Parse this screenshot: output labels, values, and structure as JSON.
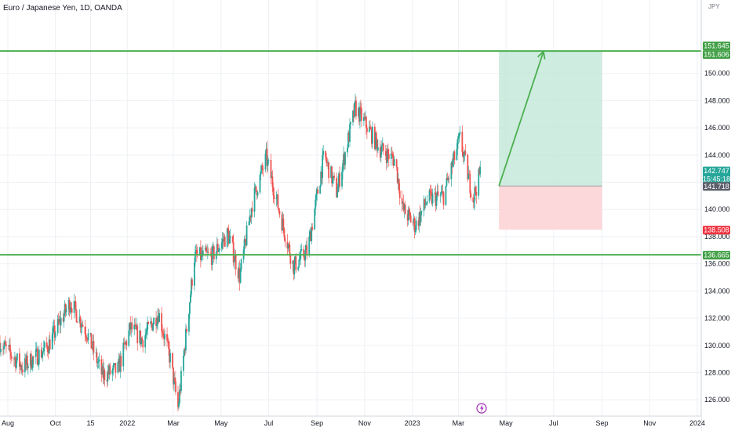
{
  "chart_title": "Euro / Japanese Yen, 1D, OANDA",
  "colors": {
    "up": "#26a69a",
    "down": "#ef5350",
    "grid": "#eef0f4",
    "axis_text": "#131722",
    "level_line": "#4caf50",
    "target_zone": "#bfe5d6",
    "stop_zone": "#fbd1d5",
    "price_tag_green": "#26a69a",
    "price_tag_dark": "#5d606b",
    "price_tag_red": "#ef3340",
    "level_tag": "#43a047",
    "arrow": "#4caf50"
  },
  "chart_data": {
    "type": "candlestick",
    "title": "Euro / Japanese Yen, 1D, OANDA",
    "y_unit": "JPY",
    "ylim": [
      124.8,
      155.4
    ],
    "y_ticks": [
      "126.000",
      "128.000",
      "130.000",
      "132.000",
      "134.000",
      "136.000",
      "138.000",
      "140.000",
      "142.000",
      "144.000",
      "146.000",
      "148.000",
      "150.000"
    ],
    "x_ticks": [
      "Aug",
      "Oct",
      "15",
      "2022",
      "Mar",
      "May",
      "Jul",
      "Sep",
      "Nov",
      "2023",
      "Mar",
      "May",
      "Jul",
      "Sep",
      "Nov",
      "2024"
    ],
    "x_tick_dates": [
      "2021-08-01",
      "2021-10-01",
      "2021-11-15",
      "2022-01-01",
      "2022-03-01",
      "2022-05-01",
      "2022-07-01",
      "2022-09-01",
      "2022-11-01",
      "2023-01-01",
      "2023-03-01",
      "2023-05-01",
      "2023-07-01",
      "2023-09-01",
      "2023-11-01",
      "2024-01-01"
    ],
    "xlim": [
      "2021-07-22",
      "2024-01-06"
    ],
    "last_candle_date": "2023-03-29",
    "anchor_prices": [
      {
        "date": "2021-07-22",
        "price": 130.2
      },
      {
        "date": "2021-08-20",
        "price": 128.4
      },
      {
        "date": "2021-09-20",
        "price": 129.8
      },
      {
        "date": "2021-10-20",
        "price": 133.2
      },
      {
        "date": "2021-11-10",
        "price": 131.0
      },
      {
        "date": "2021-11-30",
        "price": 127.8
      },
      {
        "date": "2021-12-20",
        "price": 128.2
      },
      {
        "date": "2022-01-05",
        "price": 131.3
      },
      {
        "date": "2022-01-20",
        "price": 130.4
      },
      {
        "date": "2022-02-10",
        "price": 132.4
      },
      {
        "date": "2022-02-25",
        "price": 129.0
      },
      {
        "date": "2022-03-07",
        "price": 125.4
      },
      {
        "date": "2022-03-28",
        "price": 136.5
      },
      {
        "date": "2022-04-20",
        "price": 136.6
      },
      {
        "date": "2022-05-10",
        "price": 138.2
      },
      {
        "date": "2022-05-25",
        "price": 135.1
      },
      {
        "date": "2022-06-10",
        "price": 140.5
      },
      {
        "date": "2022-06-28",
        "price": 143.8
      },
      {
        "date": "2022-07-15",
        "price": 139.8
      },
      {
        "date": "2022-08-02",
        "price": 135.8
      },
      {
        "date": "2022-08-20",
        "price": 137.0
      },
      {
        "date": "2022-09-10",
        "price": 144.0
      },
      {
        "date": "2022-09-26",
        "price": 141.3
      },
      {
        "date": "2022-10-20",
        "price": 147.5
      },
      {
        "date": "2022-11-05",
        "price": 146.0
      },
      {
        "date": "2022-11-20",
        "price": 144.5
      },
      {
        "date": "2022-12-10",
        "price": 143.6
      },
      {
        "date": "2022-12-20",
        "price": 140.0
      },
      {
        "date": "2023-01-05",
        "price": 138.8
      },
      {
        "date": "2023-01-20",
        "price": 140.7
      },
      {
        "date": "2023-02-10",
        "price": 141.0
      },
      {
        "date": "2023-03-03",
        "price": 145.2
      },
      {
        "date": "2023-03-20",
        "price": 140.8
      },
      {
        "date": "2023-03-29",
        "price": 142.7
      }
    ],
    "support_level": 136.665,
    "resistance_level": 151.645,
    "position": {
      "entry": 141.718,
      "target": 151.606,
      "stop": 138.508,
      "start_date": "2023-04-22",
      "end_date": "2023-09-01"
    },
    "arrow": {
      "from_date": "2023-04-22",
      "from_price": 141.718,
      "to_date": "2023-06-18",
      "to_price": 151.606
    },
    "price_tags": [
      {
        "value": "151.645",
        "role": "level"
      },
      {
        "value": "151.606",
        "role": "level"
      },
      {
        "value": "142.747",
        "sub": "15:45:18",
        "role": "current"
      },
      {
        "value": "141.718",
        "role": "entry"
      },
      {
        "value": "138.508",
        "role": "stop"
      },
      {
        "value": "136.665",
        "role": "level"
      }
    ]
  }
}
